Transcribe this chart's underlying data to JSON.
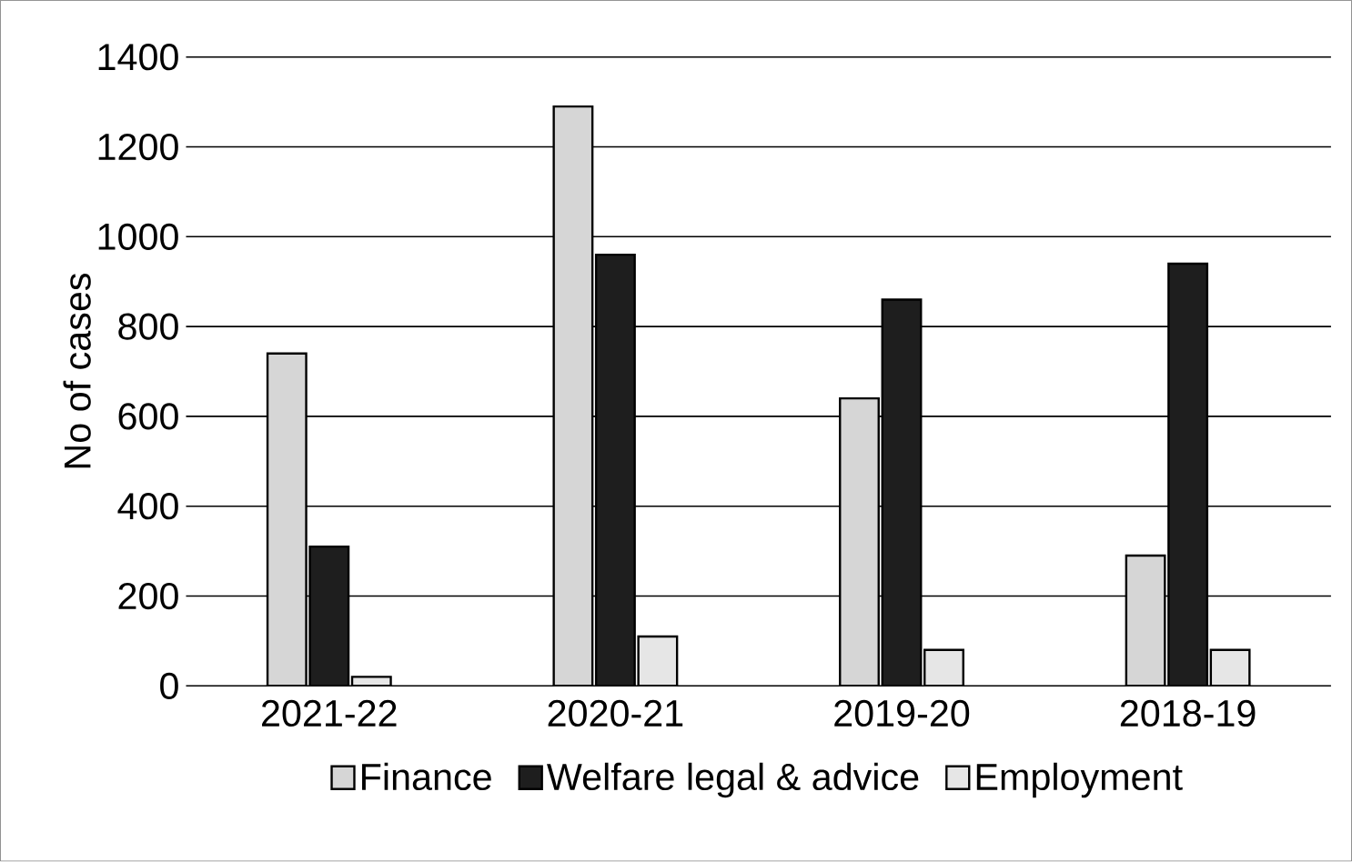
{
  "chart_data": {
    "type": "bar",
    "ylabel": "No of cases",
    "categories": [
      "2021-22",
      "2020-21",
      "2019-20",
      "2018-19"
    ],
    "series": [
      {
        "name": "Finance",
        "color": "#d6d6d6",
        "values": [
          740,
          1290,
          640,
          290
        ]
      },
      {
        "name": "Welfare legal & advice",
        "color": "#1e1e1e",
        "values": [
          310,
          960,
          860,
          940
        ]
      },
      {
        "name": "Employment",
        "color": "#e6e6e6",
        "values": [
          20,
          110,
          80,
          80
        ]
      }
    ],
    "ylim": [
      0,
      1400
    ],
    "yticks": [
      0,
      200,
      400,
      600,
      800,
      1000,
      1200,
      1400
    ],
    "grid": "y",
    "legend": "bottom"
  }
}
